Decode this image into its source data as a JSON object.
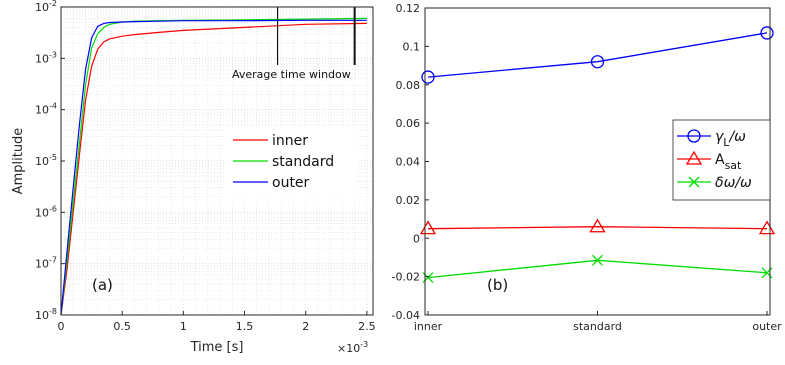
{
  "chart_data": [
    {
      "type": "line",
      "xlabel": "Time [s]",
      "ylabel": "Amplitude",
      "x_exponent_label": "×10",
      "x_exponent_power": "-3",
      "xlim": [
        0,
        2.55
      ],
      "ylim": [
        1e-08,
        0.01
      ],
      "y_scale": "log",
      "x_ticks": [
        0,
        0.5,
        1,
        1.5,
        2,
        2.5
      ],
      "x_tick_labels": [
        "0",
        "0.5",
        "1",
        "1.5",
        "2",
        "2.5"
      ],
      "y_ticks": [
        -8,
        -7,
        -6,
        -5,
        -4,
        -3,
        -2
      ],
      "y_tick_base": "10",
      "panel_label": "(a)",
      "annotation": "Average time window",
      "window_start": 1.77,
      "window_end": 2.4,
      "grid": true,
      "legend_position": "middle-right",
      "series": [
        {
          "name": "inner",
          "color": "#ff0000",
          "x": [
            0,
            0.05,
            0.1,
            0.15,
            0.2,
            0.25,
            0.3,
            0.35,
            0.4,
            0.5,
            0.6,
            0.8,
            1.0,
            1.5,
            2.0,
            2.5
          ],
          "y": [
            1e-08,
            8e-08,
            1e-06,
            1.3e-05,
            0.00015,
            0.0007,
            0.0015,
            0.0021,
            0.0024,
            0.0027,
            0.0029,
            0.0032,
            0.0035,
            0.004,
            0.0046,
            0.0048
          ]
        },
        {
          "name": "standard",
          "color": "#00dd00",
          "x": [
            0,
            0.05,
            0.1,
            0.15,
            0.2,
            0.25,
            0.3,
            0.35,
            0.4,
            0.5,
            0.6,
            0.8,
            1.0,
            1.5,
            2.0,
            2.5
          ],
          "y": [
            1e-08,
            1.2e-07,
            1.6e-06,
            2.2e-05,
            0.0003,
            0.0016,
            0.003,
            0.004,
            0.0046,
            0.0051,
            0.0053,
            0.0054,
            0.0055,
            0.0056,
            0.0058,
            0.006
          ]
        },
        {
          "name": "outer",
          "color": "#0000ff",
          "x": [
            0,
            0.05,
            0.1,
            0.15,
            0.2,
            0.25,
            0.3,
            0.35,
            0.4,
            0.5,
            0.6,
            0.8,
            1.0,
            1.5,
            2.0,
            2.5
          ],
          "y": [
            1e-08,
            1.8e-07,
            3e-06,
            5e-05,
            0.0006,
            0.0025,
            0.0042,
            0.0048,
            0.005,
            0.0051,
            0.0052,
            0.0053,
            0.0054,
            0.0054,
            0.0055,
            0.0055
          ]
        }
      ]
    },
    {
      "type": "line",
      "categories": [
        "inner",
        "standard",
        "outer"
      ],
      "ylim": [
        -0.04,
        0.12
      ],
      "y_ticks": [
        -0.04,
        -0.02,
        0,
        0.02,
        0.04,
        0.06,
        0.08,
        0.1,
        0.12
      ],
      "y_tick_labels": [
        "-0.04",
        "-0.02",
        "0",
        "0.02",
        "0.04",
        "0.06",
        "0.08",
        "0.1",
        "0.12"
      ],
      "panel_label": "(b)",
      "grid": false,
      "legend_position": "middle-right",
      "series": [
        {
          "name_main": "γ",
          "name_sub": "L",
          "name_tail": "/ω",
          "color": "#0000ff",
          "marker": "circle",
          "values": [
            0.084,
            0.092,
            0.107
          ]
        },
        {
          "name_main": "A",
          "name_sub": "sat",
          "name_tail": "",
          "color": "#ff0000",
          "marker": "triangle",
          "values": [
            0.005,
            0.006,
            0.005
          ]
        },
        {
          "name_main": "δω/ω",
          "name_sub": "",
          "name_tail": "",
          "color": "#00dd00",
          "marker": "x",
          "values": [
            -0.0205,
            -0.0115,
            -0.018
          ]
        }
      ]
    }
  ]
}
